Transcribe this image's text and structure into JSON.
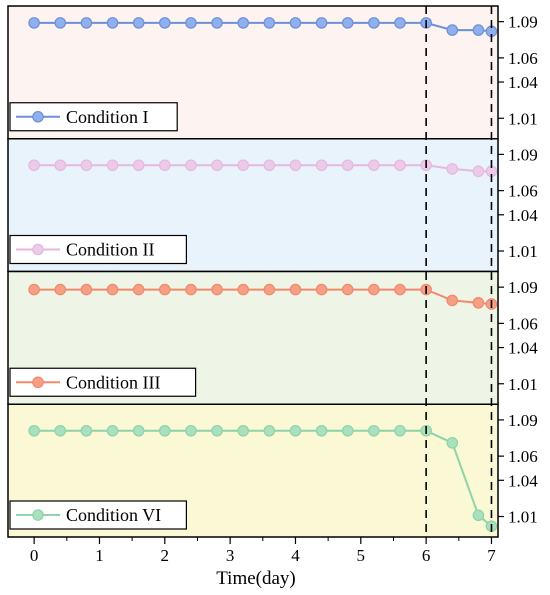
{
  "chart_data": {
    "type": "line",
    "xlabel": "Time(day)",
    "x_ticks": [
      0,
      1,
      2,
      3,
      4,
      5,
      6,
      7
    ],
    "xlim": [
      -0.4,
      7.1
    ],
    "y_ticks": [
      1.01,
      1.04,
      1.06,
      1.09
    ],
    "ylim": [
      0.998,
      1.098
    ],
    "x": [
      0,
      0.4,
      0.8,
      1.2,
      1.6,
      2.0,
      2.4,
      2.8,
      3.2,
      3.6,
      4.0,
      4.4,
      4.8,
      5.2,
      5.6,
      6.0,
      6.4,
      6.8,
      7.0
    ],
    "reference_lines_x": [
      6,
      7
    ],
    "panels": [
      {
        "name": "Condition I",
        "line_color": "#6f8fd6",
        "marker_color": "#8fb0ec",
        "background": "#fdf3f1",
        "values": [
          1.089,
          1.089,
          1.089,
          1.089,
          1.089,
          1.089,
          1.089,
          1.089,
          1.089,
          1.089,
          1.089,
          1.089,
          1.089,
          1.089,
          1.089,
          1.089,
          1.083,
          1.083,
          1.082
        ]
      },
      {
        "name": "Condition II",
        "line_color": "#e6b7df",
        "marker_color": "#eccbe8",
        "background": "#e8f3fb",
        "values": [
          1.081,
          1.081,
          1.081,
          1.081,
          1.081,
          1.081,
          1.081,
          1.081,
          1.081,
          1.081,
          1.081,
          1.081,
          1.081,
          1.081,
          1.081,
          1.081,
          1.078,
          1.076,
          1.076
        ]
      },
      {
        "name": "Condition III",
        "line_color": "#f1896a",
        "marker_color": "#f59f86",
        "background": "#eef5e6",
        "values": [
          1.088,
          1.088,
          1.088,
          1.088,
          1.088,
          1.088,
          1.088,
          1.088,
          1.088,
          1.088,
          1.088,
          1.088,
          1.088,
          1.088,
          1.088,
          1.088,
          1.079,
          1.077,
          1.076
        ]
      },
      {
        "name": "Condition VI",
        "line_color": "#8fd3a8",
        "marker_color": "#a9e0bd",
        "background": "#fbf8d6",
        "values": [
          1.081,
          1.081,
          1.081,
          1.081,
          1.081,
          1.081,
          1.081,
          1.081,
          1.081,
          1.081,
          1.081,
          1.081,
          1.081,
          1.081,
          1.081,
          1.081,
          1.071,
          1.011,
          1.002
        ]
      }
    ]
  }
}
